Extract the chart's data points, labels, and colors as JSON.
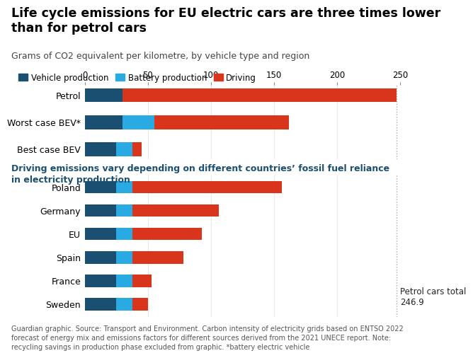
{
  "title": "Life cycle emissions for EU electric cars are three times lower\nthan for petrol cars",
  "subtitle": "Grams of CO2 equivalent per kilometre, by vehicle type and region",
  "subtitle2": "Driving emissions vary depending on different countries’ fossil fuel reliance\nin electricity production",
  "footnote": "Guardian graphic. Source: Transport and Environment. Carbon intensity of electricity grids based on ENTSO 2022\nforecast of energy mix and emissions factors for different sources derived from the 2021 UNECE report. Note:\nrecycling savings in production phase excluded from graphic. *battery electric vehicle",
  "colors": {
    "vehicle_production": "#1a4f72",
    "battery_production": "#29aae2",
    "driving": "#d9341c"
  },
  "xlim": [
    0,
    250
  ],
  "xticks": [
    0,
    50,
    100,
    150,
    200,
    250
  ],
  "top_categories": [
    "Petrol",
    "Worst case BEV*",
    "Best case BEV"
  ],
  "top_data": {
    "Petrol": {
      "vehicle": 30,
      "battery": 0,
      "driving": 217
    },
    "Worst case BEV*": {
      "vehicle": 30,
      "battery": 25,
      "driving": 107
    },
    "Best case BEV": {
      "vehicle": 25,
      "battery": 13,
      "driving": 7
    }
  },
  "bottom_categories": [
    "Poland",
    "Germany",
    "EU",
    "Spain",
    "France",
    "Sweden"
  ],
  "bottom_data": {
    "Poland": {
      "vehicle": 25,
      "battery": 13,
      "driving": 118
    },
    "Germany": {
      "vehicle": 25,
      "battery": 13,
      "driving": 68
    },
    "EU": {
      "vehicle": 25,
      "battery": 13,
      "driving": 55
    },
    "Spain": {
      "vehicle": 25,
      "battery": 13,
      "driving": 40
    },
    "France": {
      "vehicle": 25,
      "battery": 13,
      "driving": 15
    },
    "Sweden": {
      "vehicle": 25,
      "battery": 13,
      "driving": 12
    }
  },
  "petrol_total_label": "Petrol cars total\n246.9",
  "legend_labels": [
    "Vehicle production",
    "Battery production",
    "Driving"
  ],
  "legend_colors": [
    "#1a4f72",
    "#29aae2",
    "#d9341c"
  ],
  "title_fontsize": 12.5,
  "subtitle_fontsize": 9,
  "subtitle2_fontsize": 9,
  "label_fontsize": 9,
  "tick_fontsize": 8.5,
  "footnote_fontsize": 7,
  "title_color": "#000000",
  "subtitle_color": "#444444",
  "subtitle2_color": "#1a4f72",
  "footnote_color": "#555555",
  "background_color": "#ffffff",
  "dotted_line_color": "#aaaaaa",
  "grid_color": "#dddddd"
}
